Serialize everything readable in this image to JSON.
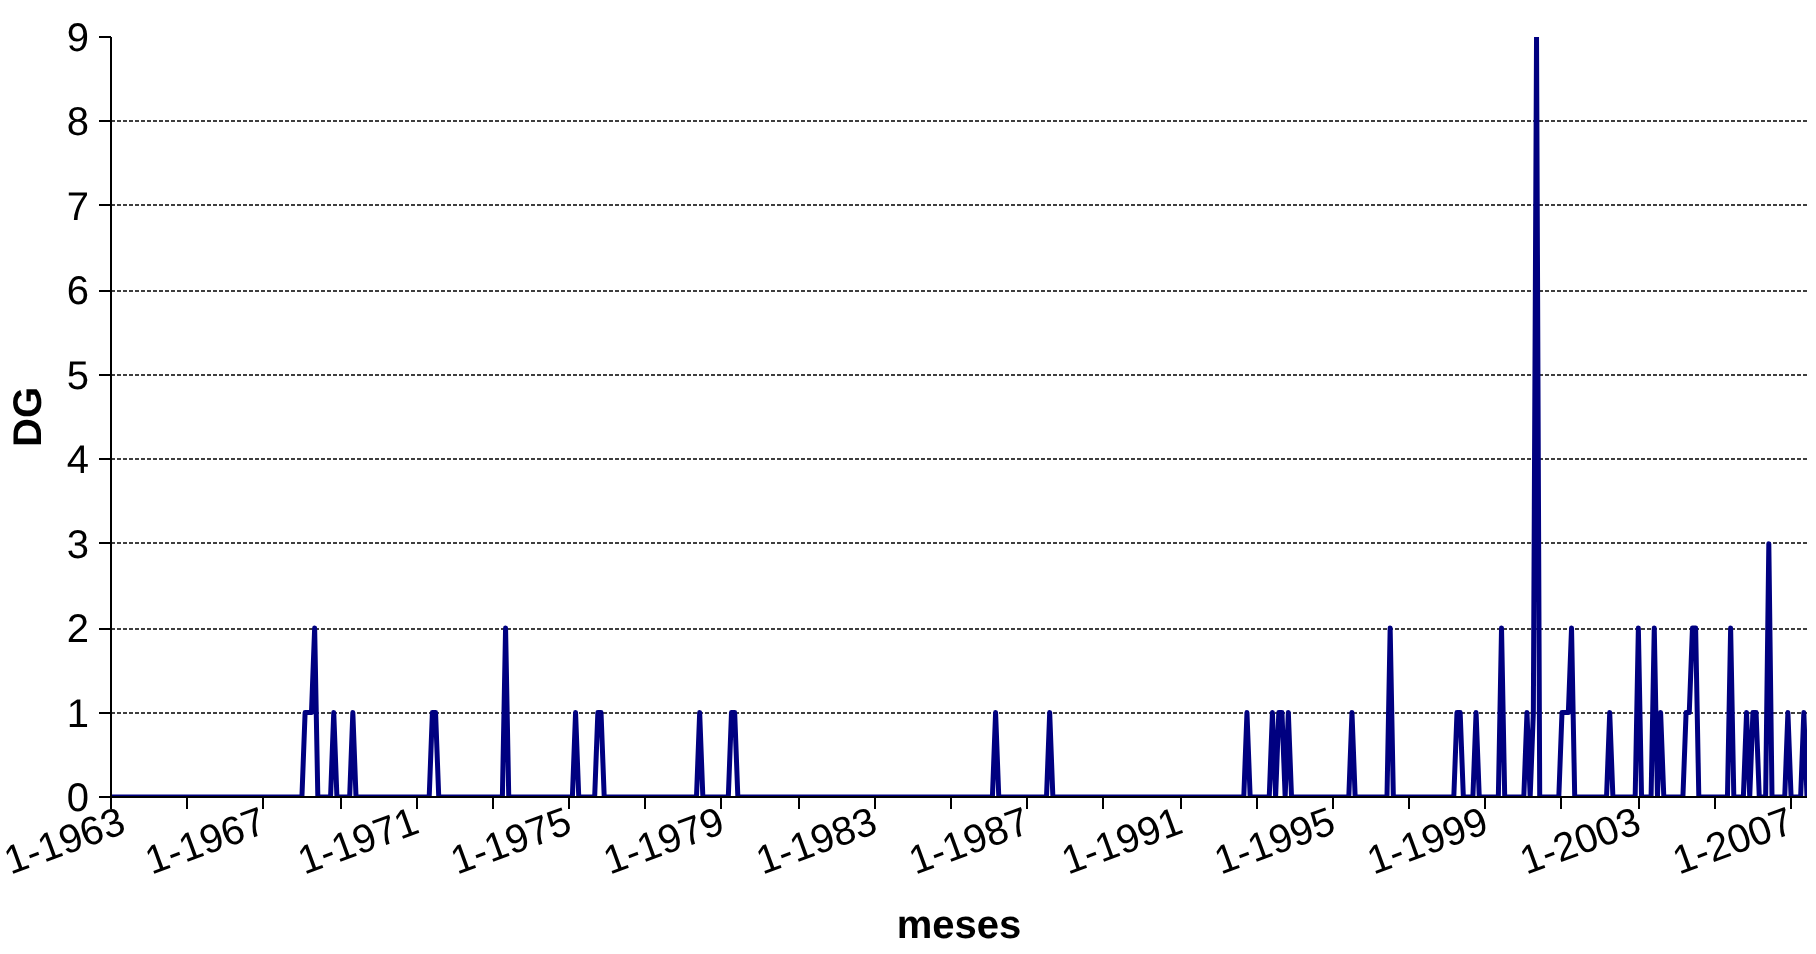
{
  "chart_data": {
    "type": "line",
    "xlabel": "meses",
    "ylabel": "DG",
    "grid": "y",
    "marker": "none",
    "line_style": "solid",
    "xlim": [
      "1963-01",
      "2007-06"
    ],
    "ylim": [
      0,
      9
    ],
    "yticks": [
      0,
      1,
      2,
      3,
      4,
      5,
      6,
      7,
      8,
      9
    ],
    "xticks": [
      {
        "value": "1963-01",
        "label": "1-1963"
      },
      {
        "value": "1965-01",
        "label": null
      },
      {
        "value": "1967-01",
        "label": "1-1967"
      },
      {
        "value": "1969-01",
        "label": null
      },
      {
        "value": "1971-01",
        "label": "1-1971"
      },
      {
        "value": "1973-01",
        "label": null
      },
      {
        "value": "1975-01",
        "label": "1-1975"
      },
      {
        "value": "1977-01",
        "label": null
      },
      {
        "value": "1979-01",
        "label": "1-1979"
      },
      {
        "value": "1981-01",
        "label": null
      },
      {
        "value": "1983-01",
        "label": "1-1983"
      },
      {
        "value": "1985-01",
        "label": null
      },
      {
        "value": "1987-01",
        "label": "1-1987"
      },
      {
        "value": "1989-01",
        "label": null
      },
      {
        "value": "1991-01",
        "label": "1-1991"
      },
      {
        "value": "1993-01",
        "label": null
      },
      {
        "value": "1995-01",
        "label": "1-1995"
      },
      {
        "value": "1997-01",
        "label": null
      },
      {
        "value": "1999-01",
        "label": "1-1999"
      },
      {
        "value": "2001-01",
        "label": null
      },
      {
        "value": "2003-01",
        "label": "1-2003"
      },
      {
        "value": "2005-01",
        "label": null
      },
      {
        "value": "2007-01",
        "label": "1-2007"
      }
    ],
    "series": [
      {
        "color": "#000080",
        "x": [
          "1963-01",
          "1968-01",
          "1968-02",
          "1968-03",
          "1968-04",
          "1968-05",
          "1968-06",
          "1968-10",
          "1968-11",
          "1968-12",
          "1969-04",
          "1969-05",
          "1969-06",
          "1971-05",
          "1971-06",
          "1971-07",
          "1971-08",
          "1973-04",
          "1973-05",
          "1973-06",
          "1975-02",
          "1975-03",
          "1975-04",
          "1975-09",
          "1975-10",
          "1975-11",
          "1975-12",
          "1978-05",
          "1978-06",
          "1978-07",
          "1979-03",
          "1979-04",
          "1979-05",
          "1979-06",
          "1986-02",
          "1986-03",
          "1986-04",
          "1987-07",
          "1987-08",
          "1987-09",
          "1992-09",
          "1992-10",
          "1992-11",
          "1993-05",
          "1993-06",
          "1993-07",
          "1993-08",
          "1993-09",
          "1993-10",
          "1993-11",
          "1993-12",
          "1995-06",
          "1995-07",
          "1995-08",
          "1996-06",
          "1996-07",
          "1996-08",
          "1998-03",
          "1998-04",
          "1998-05",
          "1998-06",
          "1998-09",
          "1998-10",
          "1998-11",
          "1999-05",
          "1999-06",
          "1999-07",
          "2000-01",
          "2000-02",
          "2000-03",
          "2000-04",
          "2000-05",
          "2000-06",
          "2000-12",
          "2001-01",
          "2001-02",
          "2001-03",
          "2001-04",
          "2001-05",
          "2002-03",
          "2002-04",
          "2002-05",
          "2002-12",
          "2003-01",
          "2003-02",
          "2003-05",
          "2003-06",
          "2003-07",
          "2003-08",
          "2003-09",
          "2004-03",
          "2004-04",
          "2004-05",
          "2004-06",
          "2004-07",
          "2004-08",
          "2005-05",
          "2005-06",
          "2005-07",
          "2005-10",
          "2005-11",
          "2005-12",
          "2006-01",
          "2006-02",
          "2006-03",
          "2006-05",
          "2006-06",
          "2006-07",
          "2006-11",
          "2006-12",
          "2007-01",
          "2007-04",
          "2007-05",
          "2007-06"
        ],
        "values": [
          0,
          0,
          1,
          1,
          1,
          2,
          0,
          0,
          1,
          0,
          0,
          1,
          0,
          0,
          1,
          1,
          0,
          0,
          2,
          0,
          0,
          1,
          0,
          0,
          1,
          1,
          0,
          0,
          1,
          0,
          0,
          1,
          1,
          0,
          0,
          1,
          0,
          0,
          1,
          0,
          0,
          1,
          0,
          0,
          1,
          0,
          1,
          1,
          0,
          1,
          0,
          0,
          1,
          0,
          0,
          2,
          0,
          0,
          1,
          1,
          0,
          0,
          1,
          0,
          0,
          2,
          0,
          0,
          1,
          0,
          1,
          9,
          0,
          0,
          1,
          1,
          1,
          2,
          0,
          0,
          1,
          0,
          0,
          2,
          0,
          0,
          2,
          0,
          1,
          0,
          0,
          1,
          1,
          2,
          2,
          0,
          0,
          2,
          0,
          0,
          1,
          0,
          1,
          1,
          0,
          0,
          3,
          0,
          0,
          1,
          0,
          0,
          1,
          0
        ]
      }
    ]
  }
}
